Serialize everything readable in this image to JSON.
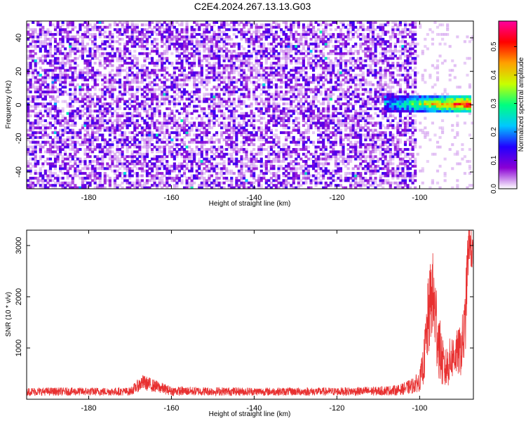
{
  "title": "C2E4.2024.267.13.13.G03",
  "chart_data": [
    {
      "type": "heatmap",
      "xlabel": "Height of straight line (km)",
      "ylabel": "Frequency (Hz)",
      "xlim": [
        -195,
        -87
      ],
      "ylim": [
        -50,
        50
      ],
      "xticks": [
        -180,
        -160,
        -140,
        -120,
        -100
      ],
      "xtick_labels": [
        "-180",
        "-160",
        "-140",
        "-120",
        "-100"
      ],
      "yticks": [
        -40,
        -20,
        0,
        20,
        40
      ],
      "ytick_labels": [
        "-40",
        "-20",
        "0",
        "20",
        "40"
      ],
      "colorbar": {
        "label": "Normalized spectral amplitude",
        "range": [
          0.0,
          0.59
        ],
        "ticks": [
          0.0,
          0.1,
          0.2,
          0.3,
          0.4,
          0.5
        ],
        "tick_labels": [
          "0.0",
          "0.1",
          "0.2",
          "0.3",
          "0.4",
          "0.5"
        ],
        "colors": [
          "#ffffff",
          "#8a00d4",
          "#2200ff",
          "#00c8ff",
          "#00ff7f",
          "#c8ff00",
          "#ffa000",
          "#ff0000",
          "#ff00a0"
        ]
      },
      "cutoff_x": -101,
      "background_mean": 0.07,
      "features": [
        {
          "x_from": -109,
          "x_to": -88,
          "freq_center": 0,
          "freq_halfwidth": 5,
          "peak": 0.55,
          "description_hidden": true
        }
      ]
    },
    {
      "type": "line",
      "xlabel": "Height of straight line (km)",
      "ylabel": "SNR (10 * v/v)",
      "xlim": [
        -195,
        -87
      ],
      "ylim": [
        0,
        3300
      ],
      "xticks": [
        -180,
        -160,
        -140,
        -120,
        -100
      ],
      "xtick_labels": [
        "-180",
        "-160",
        "-140",
        "-120",
        "-100"
      ],
      "yticks": [
        1000,
        2000,
        3000
      ],
      "ytick_labels": [
        "1000",
        "2000",
        "3000"
      ],
      "series": [
        {
          "name": "SNR",
          "color": "#e83030",
          "x": [
            -195,
            -190,
            -180,
            -170,
            -167,
            -160,
            -150,
            -140,
            -130,
            -120,
            -110,
            -105,
            -102,
            -100,
            -99,
            -98,
            -97,
            -96.5,
            -96,
            -95,
            -94,
            -93,
            -92,
            -91,
            -90,
            -89,
            -88.5,
            -88,
            -87.5,
            -87
          ],
          "mean": [
            150,
            150,
            150,
            150,
            330,
            160,
            155,
            150,
            150,
            150,
            160,
            180,
            250,
            350,
            700,
            1500,
            2100,
            1800,
            1500,
            900,
            550,
            700,
            850,
            900,
            950,
            1400,
            2500,
            3150,
            2900,
            2700
          ],
          "spread": [
            80,
            80,
            80,
            80,
            150,
            90,
            85,
            80,
            80,
            80,
            90,
            100,
            150,
            200,
            400,
            800,
            900,
            900,
            900,
            600,
            400,
            450,
            450,
            450,
            500,
            700,
            600,
            400,
            400,
            400
          ]
        }
      ]
    }
  ]
}
